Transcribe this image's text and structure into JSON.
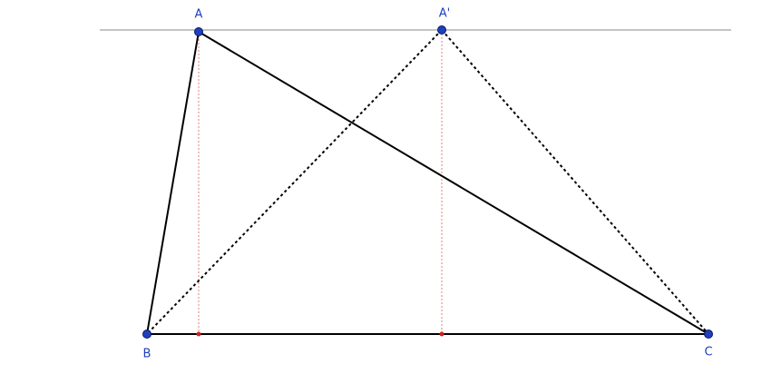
{
  "nodes": [
    {
      "label": "A"
    },
    {
      "label": "A'"
    },
    {
      "label": "B"
    },
    {
      "label": "C"
    }
  ]
}
